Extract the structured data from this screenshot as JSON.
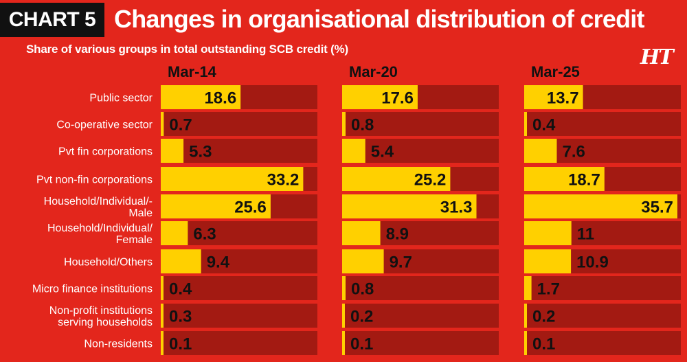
{
  "header": {
    "badge": "CHART 5",
    "title": "Changes in organisational distribution of credit",
    "subtitle": "Share of various groups in total outstanding SCB credit  (%)",
    "logo": "HT"
  },
  "colors": {
    "background": "#e3261c",
    "track": "#a31a12",
    "bar": "#ffd000",
    "label_text": "#111111"
  },
  "chart_data": {
    "type": "bar",
    "orientation": "horizontal",
    "title": "Changes in organisational distribution of credit",
    "subtitle": "Share of various groups in total outstanding SCB credit  (%)",
    "categories": [
      [
        "Public sector"
      ],
      [
        "Co-operative sector"
      ],
      [
        "Pvt fin corporations"
      ],
      [
        "Pvt non-fin corporations"
      ],
      [
        "Household/Individual/-",
        "Male"
      ],
      [
        "Household/Individual/",
        "Female"
      ],
      [
        "Household/Others"
      ],
      [
        "Micro finance institutions"
      ],
      [
        "Non-profit institutions",
        "serving households"
      ],
      [
        "Non-residents"
      ]
    ],
    "series": [
      {
        "name": "Mar-14",
        "values": [
          18.6,
          0.7,
          5.3,
          33.2,
          25.6,
          6.3,
          9.4,
          0.4,
          0.3,
          0.1
        ]
      },
      {
        "name": "Mar-20",
        "values": [
          17.6,
          0.8,
          5.4,
          25.2,
          31.3,
          8.9,
          9.7,
          0.8,
          0.2,
          0.1
        ]
      },
      {
        "name": "Mar-25",
        "values": [
          13.7,
          0.4,
          7.6,
          18.7,
          35.7,
          11,
          10.9,
          1.7,
          0.2,
          0.1
        ]
      }
    ],
    "xlim": [
      0,
      36.5
    ]
  }
}
